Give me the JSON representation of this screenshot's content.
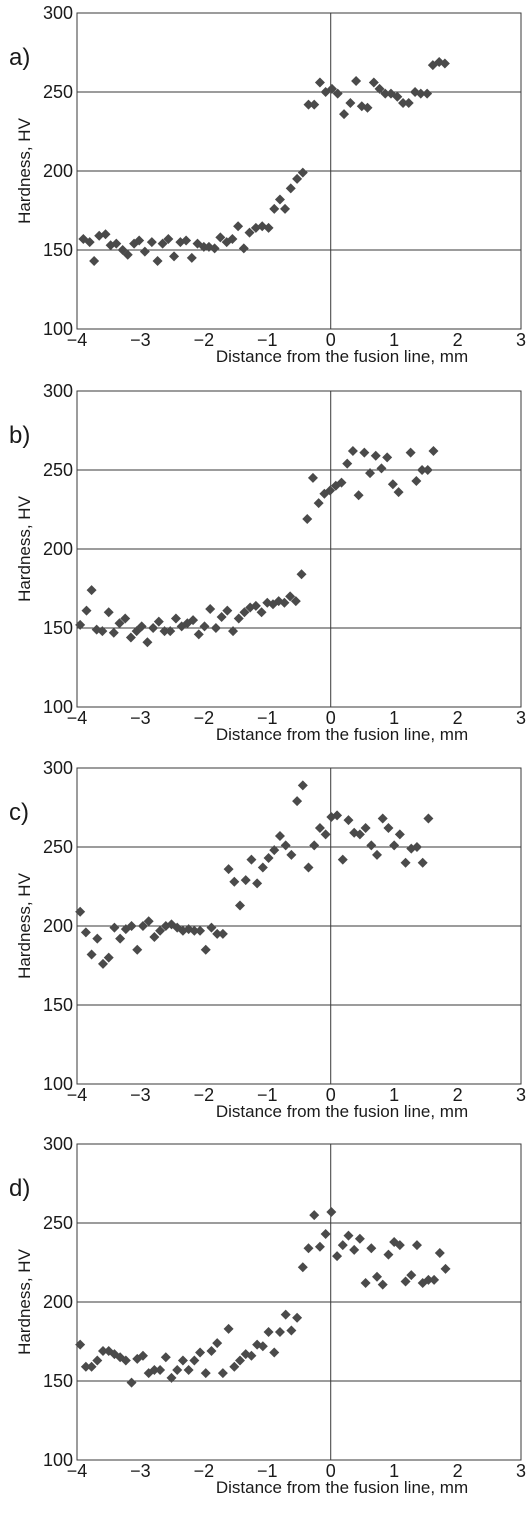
{
  "figure": {
    "background": "#ffffff",
    "marker_color": "#4a4a4a",
    "grid_color": "#3a3a3a"
  },
  "chart_data": [
    {
      "type": "scatter",
      "panel_label": "a)",
      "xlabel": "Distance from the fusion line, mm",
      "ylabel": "Hardness, HV",
      "xlim": [
        -4,
        3
      ],
      "ylim": [
        100,
        300
      ],
      "x_ticks": [
        "-4",
        "-3",
        "-2",
        "-1",
        "0",
        "1",
        "2",
        "3"
      ],
      "y_ticks": [
        "100",
        "150",
        "200",
        "250",
        "300"
      ],
      "grid": true,
      "series": [
        {
          "points": [
            [
              -3.9,
              157
            ],
            [
              -3.8,
              155
            ],
            [
              -3.73,
              143
            ],
            [
              -3.65,
              159
            ],
            [
              -3.55,
              160
            ],
            [
              -3.47,
              153
            ],
            [
              -3.38,
              154
            ],
            [
              -3.28,
              150
            ],
            [
              -3.2,
              147
            ],
            [
              -3.1,
              154
            ],
            [
              -3.02,
              156
            ],
            [
              -2.93,
              149
            ],
            [
              -2.82,
              155
            ],
            [
              -2.73,
              143
            ],
            [
              -2.65,
              154
            ],
            [
              -2.56,
              157
            ],
            [
              -2.47,
              146
            ],
            [
              -2.37,
              155
            ],
            [
              -2.28,
              156
            ],
            [
              -2.19,
              145
            ],
            [
              -2.1,
              154
            ],
            [
              -2.0,
              152
            ],
            [
              -1.92,
              152
            ],
            [
              -1.83,
              151
            ],
            [
              -1.74,
              158
            ],
            [
              -1.64,
              155
            ],
            [
              -1.55,
              157
            ],
            [
              -1.46,
              165
            ],
            [
              -1.37,
              151
            ],
            [
              -1.28,
              161
            ],
            [
              -1.18,
              164
            ],
            [
              -1.08,
              165
            ],
            [
              -0.98,
              164
            ],
            [
              -0.89,
              176
            ],
            [
              -0.8,
              182
            ],
            [
              -0.72,
              176
            ],
            [
              -0.63,
              189
            ],
            [
              -0.53,
              195
            ],
            [
              -0.44,
              199
            ],
            [
              -0.35,
              242
            ],
            [
              -0.26,
              242
            ],
            [
              -0.17,
              256
            ],
            [
              -0.08,
              250
            ],
            [
              0.02,
              252
            ],
            [
              0.11,
              249
            ],
            [
              0.21,
              236
            ],
            [
              0.31,
              243
            ],
            [
              0.4,
              257
            ],
            [
              0.49,
              241
            ],
            [
              0.58,
              240
            ],
            [
              0.68,
              256
            ],
            [
              0.77,
              252
            ],
            [
              0.86,
              249
            ],
            [
              0.95,
              249
            ],
            [
              1.05,
              247
            ],
            [
              1.14,
              243
            ],
            [
              1.23,
              243
            ],
            [
              1.33,
              250
            ],
            [
              1.42,
              249
            ],
            [
              1.52,
              249
            ],
            [
              1.61,
              267
            ],
            [
              1.71,
              269
            ],
            [
              1.8,
              268
            ]
          ]
        }
      ]
    },
    {
      "type": "scatter",
      "panel_label": "b)",
      "xlabel": "Distance from the fusion line, mm",
      "ylabel": "Hardness, HV",
      "xlim": [
        -4,
        3
      ],
      "ylim": [
        100,
        300
      ],
      "x_ticks": [
        "-4",
        "-3",
        "-2",
        "-1",
        "0",
        "1",
        "2",
        "3"
      ],
      "y_ticks": [
        "100",
        "150",
        "200",
        "250",
        "300"
      ],
      "grid": true,
      "series": [
        {
          "points": [
            [
              -3.95,
              152
            ],
            [
              -3.85,
              161
            ],
            [
              -3.77,
              174
            ],
            [
              -3.69,
              149
            ],
            [
              -3.6,
              148
            ],
            [
              -3.5,
              160
            ],
            [
              -3.42,
              147
            ],
            [
              -3.33,
              153
            ],
            [
              -3.24,
              156
            ],
            [
              -3.15,
              144
            ],
            [
              -3.06,
              148
            ],
            [
              -2.98,
              151
            ],
            [
              -2.89,
              141
            ],
            [
              -2.8,
              150
            ],
            [
              -2.71,
              154
            ],
            [
              -2.62,
              148
            ],
            [
              -2.53,
              148
            ],
            [
              -2.44,
              156
            ],
            [
              -2.35,
              151
            ],
            [
              -2.26,
              153
            ],
            [
              -2.17,
              155
            ],
            [
              -2.08,
              146
            ],
            [
              -1.99,
              151
            ],
            [
              -1.9,
              162
            ],
            [
              -1.81,
              150
            ],
            [
              -1.72,
              157
            ],
            [
              -1.63,
              161
            ],
            [
              -1.54,
              148
            ],
            [
              -1.45,
              156
            ],
            [
              -1.36,
              160
            ],
            [
              -1.27,
              163
            ],
            [
              -1.18,
              164
            ],
            [
              -1.09,
              160
            ],
            [
              -1.0,
              166
            ],
            [
              -0.91,
              165
            ],
            [
              -0.82,
              167
            ],
            [
              -0.73,
              166
            ],
            [
              -0.64,
              170
            ],
            [
              -0.55,
              167
            ],
            [
              -0.46,
              184
            ],
            [
              -0.37,
              219
            ],
            [
              -0.28,
              245
            ],
            [
              -0.19,
              229
            ],
            [
              -0.1,
              235
            ],
            [
              -0.01,
              237
            ],
            [
              0.08,
              240
            ],
            [
              0.17,
              242
            ],
            [
              0.26,
              254
            ],
            [
              0.35,
              262
            ],
            [
              0.44,
              234
            ],
            [
              0.53,
              261
            ],
            [
              0.62,
              248
            ],
            [
              0.71,
              259
            ],
            [
              0.8,
              251
            ],
            [
              0.89,
              258
            ],
            [
              0.98,
              241
            ],
            [
              1.07,
              236
            ],
            [
              1.26,
              261
            ],
            [
              1.35,
              243
            ],
            [
              1.44,
              250
            ],
            [
              1.53,
              250
            ],
            [
              1.62,
              262
            ]
          ]
        }
      ]
    },
    {
      "type": "scatter",
      "panel_label": "c)",
      "xlabel": "Distance from the fusion line, mm",
      "ylabel": "Hardness, HV",
      "xlim": [
        -4,
        3
      ],
      "ylim": [
        100,
        300
      ],
      "x_ticks": [
        "-4",
        "-3",
        "-2",
        "-1",
        "0",
        "1",
        "2",
        "3"
      ],
      "y_ticks": [
        "100",
        "150",
        "200",
        "250",
        "300"
      ],
      "grid": true,
      "series": [
        {
          "points": [
            [
              -3.95,
              209
            ],
            [
              -3.86,
              196
            ],
            [
              -3.77,
              182
            ],
            [
              -3.68,
              192
            ],
            [
              -3.59,
              176
            ],
            [
              -3.5,
              180
            ],
            [
              -3.41,
              199
            ],
            [
              -3.32,
              192
            ],
            [
              -3.23,
              198
            ],
            [
              -3.14,
              200
            ],
            [
              -3.05,
              185
            ],
            [
              -2.96,
              200
            ],
            [
              -2.87,
              203
            ],
            [
              -2.78,
              193
            ],
            [
              -2.69,
              197
            ],
            [
              -2.6,
              200
            ],
            [
              -2.51,
              201
            ],
            [
              -2.42,
              199
            ],
            [
              -2.33,
              197
            ],
            [
              -2.24,
              198
            ],
            [
              -2.15,
              197
            ],
            [
              -2.06,
              197
            ],
            [
              -1.97,
              185
            ],
            [
              -1.88,
              199
            ],
            [
              -1.79,
              195
            ],
            [
              -1.7,
              195
            ],
            [
              -1.61,
              236
            ],
            [
              -1.52,
              228
            ],
            [
              -1.43,
              213
            ],
            [
              -1.34,
              229
            ],
            [
              -1.25,
              242
            ],
            [
              -1.16,
              227
            ],
            [
              -1.07,
              237
            ],
            [
              -0.98,
              243
            ],
            [
              -0.89,
              248
            ],
            [
              -0.8,
              257
            ],
            [
              -0.71,
              251
            ],
            [
              -0.62,
              245
            ],
            [
              -0.53,
              279
            ],
            [
              -0.44,
              289
            ],
            [
              -0.35,
              237
            ],
            [
              -0.26,
              251
            ],
            [
              -0.17,
              262
            ],
            [
              -0.08,
              258
            ],
            [
              0.01,
              269
            ],
            [
              0.1,
              270
            ],
            [
              0.19,
              242
            ],
            [
              0.28,
              267
            ],
            [
              0.37,
              259
            ],
            [
              0.46,
              258
            ],
            [
              0.55,
              262
            ],
            [
              0.64,
              251
            ],
            [
              0.73,
              245
            ],
            [
              0.82,
              268
            ],
            [
              0.91,
              262
            ],
            [
              1.0,
              251
            ],
            [
              1.09,
              258
            ],
            [
              1.18,
              240
            ],
            [
              1.27,
              249
            ],
            [
              1.36,
              250
            ],
            [
              1.45,
              240
            ],
            [
              1.54,
              268
            ]
          ]
        }
      ]
    },
    {
      "type": "scatter",
      "panel_label": "d)",
      "xlabel": "Distance from the fusion line, mm",
      "ylabel": "Hardness, HV",
      "xlim": [
        -4,
        3
      ],
      "ylim": [
        100,
        300
      ],
      "x_ticks": [
        "-4",
        "-3",
        "-2",
        "-1",
        "0",
        "1",
        "2",
        "3"
      ],
      "y_ticks": [
        "100",
        "150",
        "200",
        "250",
        "300"
      ],
      "grid": true,
      "series": [
        {
          "points": [
            [
              -3.95,
              173
            ],
            [
              -3.86,
              159
            ],
            [
              -3.77,
              159
            ],
            [
              -3.68,
              163
            ],
            [
              -3.59,
              169
            ],
            [
              -3.5,
              169
            ],
            [
              -3.41,
              167
            ],
            [
              -3.32,
              165
            ],
            [
              -3.23,
              163
            ],
            [
              -3.14,
              149
            ],
            [
              -3.05,
              164
            ],
            [
              -2.96,
              166
            ],
            [
              -2.87,
              155
            ],
            [
              -2.78,
              157
            ],
            [
              -2.69,
              157
            ],
            [
              -2.6,
              165
            ],
            [
              -2.51,
              152
            ],
            [
              -2.42,
              157
            ],
            [
              -2.33,
              163
            ],
            [
              -2.24,
              157
            ],
            [
              -2.15,
              163
            ],
            [
              -2.06,
              168
            ],
            [
              -1.97,
              155
            ],
            [
              -1.88,
              169
            ],
            [
              -1.79,
              174
            ],
            [
              -1.7,
              155
            ],
            [
              -1.61,
              183
            ],
            [
              -1.52,
              159
            ],
            [
              -1.43,
              163
            ],
            [
              -1.34,
              167
            ],
            [
              -1.25,
              166
            ],
            [
              -1.16,
              173
            ],
            [
              -1.07,
              172
            ],
            [
              -0.98,
              181
            ],
            [
              -0.89,
              168
            ],
            [
              -0.8,
              181
            ],
            [
              -0.71,
              192
            ],
            [
              -0.62,
              182
            ],
            [
              -0.53,
              190
            ],
            [
              -0.44,
              222
            ],
            [
              -0.35,
              234
            ],
            [
              -0.26,
              255
            ],
            [
              -0.17,
              235
            ],
            [
              -0.08,
              243
            ],
            [
              0.01,
              257
            ],
            [
              0.1,
              229
            ],
            [
              0.19,
              236
            ],
            [
              0.28,
              242
            ],
            [
              0.37,
              233
            ],
            [
              0.46,
              240
            ],
            [
              0.55,
              212
            ],
            [
              0.64,
              234
            ],
            [
              0.73,
              216
            ],
            [
              0.82,
              211
            ],
            [
              0.91,
              230
            ],
            [
              1.0,
              238
            ],
            [
              1.09,
              236
            ],
            [
              1.18,
              213
            ],
            [
              1.27,
              217
            ],
            [
              1.36,
              236
            ],
            [
              1.45,
              212
            ],
            [
              1.54,
              214
            ],
            [
              1.63,
              214
            ],
            [
              1.72,
              231
            ],
            [
              1.81,
              221
            ]
          ]
        }
      ]
    }
  ]
}
